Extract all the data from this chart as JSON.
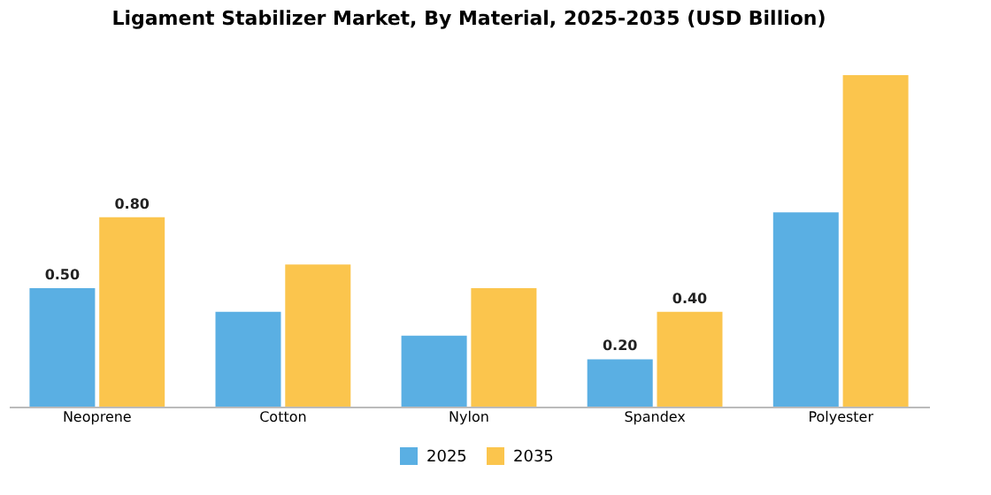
{
  "chart_data": {
    "type": "bar",
    "title": "Ligament Stabilizer Market, By Material, 2025-2035 (USD Billion)",
    "categories": [
      "Neoprene",
      "Cotton",
      "Nylon",
      "Spandex",
      "Polyester"
    ],
    "series": [
      {
        "name": "2025",
        "color": "#5aafe3",
        "values": [
          0.5,
          0.4,
          0.3,
          0.2,
          0.82
        ],
        "value_labels": [
          "0.50",
          null,
          null,
          "0.20",
          null
        ]
      },
      {
        "name": "2035",
        "color": "#fbc54d",
        "values": [
          0.8,
          0.6,
          0.5,
          0.4,
          1.4
        ],
        "value_labels": [
          "0.80",
          null,
          null,
          "0.40",
          null
        ]
      }
    ],
    "tick_labels": "x",
    "grid": false,
    "legend": "bottom"
  }
}
